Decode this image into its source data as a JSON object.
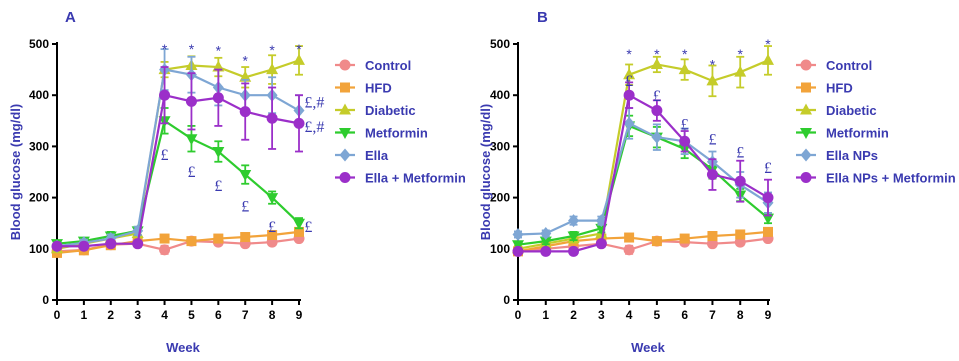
{
  "chart_data": [
    {
      "type": "line",
      "panel_label": "A",
      "xlabel": "Week",
      "ylabel": "Blood glucose (mg/dl)",
      "xlim": [
        0,
        9
      ],
      "ylim": [
        0,
        500
      ],
      "x_ticks": [
        0,
        1,
        2,
        3,
        4,
        5,
        6,
        7,
        8,
        9
      ],
      "y_ticks": [
        0,
        100,
        200,
        300,
        400,
        500
      ],
      "x": [
        0,
        1,
        2,
        3,
        4,
        5,
        6,
        7,
        8,
        9
      ],
      "legend": "right",
      "series": [
        {
          "name": "Control",
          "color": "#f08a8a",
          "marker": "circle",
          "values": [
            95,
            98,
            108,
            110,
            98,
            115,
            113,
            110,
            113,
            120
          ],
          "errors": [
            5,
            5,
            6,
            6,
            8,
            6,
            6,
            5,
            6,
            6
          ]
        },
        {
          "name": "HFD",
          "color": "#f2a33a",
          "marker": "square",
          "values": [
            92,
            97,
            107,
            115,
            120,
            115,
            120,
            123,
            127,
            133
          ],
          "errors": [
            5,
            5,
            5,
            6,
            6,
            6,
            6,
            6,
            6,
            6
          ]
        },
        {
          "name": "Diabetic",
          "color": "#c5cc2a",
          "marker": "triangle-up",
          "values": [
            100,
            110,
            120,
            130,
            450,
            458,
            455,
            435,
            450,
            468
          ],
          "errors": [
            6,
            6,
            8,
            8,
            15,
            18,
            18,
            20,
            28,
            28
          ]
        },
        {
          "name": "Metformin",
          "color": "#2ecc2e",
          "marker": "triangle-down",
          "values": [
            110,
            115,
            125,
            135,
            350,
            315,
            290,
            245,
            200,
            150
          ],
          "errors": [
            6,
            6,
            8,
            8,
            25,
            25,
            20,
            18,
            12,
            10
          ]
        },
        {
          "name": "Ella",
          "color": "#7ea6d4",
          "marker": "diamond",
          "values": [
            105,
            112,
            120,
            135,
            450,
            440,
            415,
            400,
            400,
            370
          ],
          "errors": [
            6,
            6,
            8,
            8,
            40,
            35,
            35,
            30,
            35,
            30
          ]
        },
        {
          "name": "Ella + Metformin",
          "color": "#9b2fc9",
          "marker": "circle",
          "values": [
            105,
            105,
            110,
            110,
            400,
            388,
            395,
            368,
            355,
            345
          ],
          "errors": [
            6,
            6,
            6,
            6,
            55,
            55,
            55,
            55,
            60,
            55
          ]
        }
      ],
      "annotations": [
        {
          "x": 4,
          "y": 500,
          "text": "*"
        },
        {
          "x": 5,
          "y": 500,
          "text": "*"
        },
        {
          "x": 6,
          "y": 497,
          "text": "*"
        },
        {
          "x": 7,
          "y": 478,
          "text": "*"
        },
        {
          "x": 8,
          "y": 498,
          "text": "*"
        },
        {
          "x": 9,
          "y": 500,
          "text": "*"
        },
        {
          "x": 4,
          "y": 285,
          "text": "£",
          "kind": "pound"
        },
        {
          "x": 5,
          "y": 252,
          "text": "£",
          "kind": "pound"
        },
        {
          "x": 6,
          "y": 225,
          "text": "£",
          "kind": "pound"
        },
        {
          "x": 7,
          "y": 185,
          "text": "£",
          "kind": "pound"
        },
        {
          "x": 8,
          "y": 145,
          "text": "£",
          "kind": "pound"
        },
        {
          "x": 9.2,
          "y": 145,
          "text": "£",
          "kind": "pound"
        },
        {
          "x": 9.2,
          "y": 388,
          "text": "£,#",
          "kind": "pound"
        },
        {
          "x": 9.2,
          "y": 340,
          "text": "£,#",
          "kind": "pound"
        }
      ]
    },
    {
      "type": "line",
      "panel_label": "B",
      "xlabel": "Week",
      "ylabel": "Blood glucose (mg/dl)",
      "xlim": [
        0,
        9
      ],
      "ylim": [
        0,
        500
      ],
      "x_ticks": [
        0,
        1,
        2,
        3,
        4,
        5,
        6,
        7,
        8,
        9
      ],
      "y_ticks": [
        0,
        100,
        200,
        300,
        400,
        500
      ],
      "x": [
        0,
        1,
        2,
        3,
        4,
        5,
        6,
        7,
        8,
        9
      ],
      "legend": "right",
      "series": [
        {
          "name": "Control",
          "color": "#f08a8a",
          "marker": "circle",
          "values": [
            95,
            100,
            105,
            110,
            98,
            115,
            113,
            110,
            113,
            120
          ],
          "errors": [
            5,
            5,
            5,
            6,
            8,
            6,
            6,
            5,
            6,
            6
          ]
        },
        {
          "name": "HFD",
          "color": "#f2a33a",
          "marker": "square",
          "values": [
            95,
            105,
            115,
            120,
            122,
            115,
            120,
            125,
            128,
            133
          ],
          "errors": [
            5,
            5,
            5,
            6,
            6,
            6,
            6,
            6,
            6,
            6
          ]
        },
        {
          "name": "Diabetic",
          "color": "#c5cc2a",
          "marker": "triangle-up",
          "values": [
            100,
            110,
            120,
            130,
            440,
            460,
            450,
            428,
            445,
            468
          ],
          "errors": [
            6,
            6,
            8,
            8,
            20,
            15,
            20,
            30,
            30,
            28
          ]
        },
        {
          "name": "Metformin",
          "color": "#2ecc2e",
          "marker": "triangle-down",
          "values": [
            108,
            115,
            125,
            140,
            340,
            318,
            295,
            255,
            205,
            160
          ],
          "errors": [
            6,
            6,
            8,
            8,
            20,
            20,
            18,
            18,
            12,
            10
          ]
        },
        {
          "name": "Ella NPs",
          "color": "#7ea6d4",
          "marker": "diamond",
          "values": [
            128,
            130,
            155,
            155,
            345,
            318,
            310,
            270,
            225,
            190
          ],
          "errors": [
            6,
            6,
            8,
            8,
            30,
            25,
            25,
            20,
            25,
            20
          ]
        },
        {
          "name": "Ella NPs + Metformin",
          "color": "#9b2fc9",
          "marker": "circle",
          "values": [
            95,
            95,
            95,
            110,
            400,
            370,
            310,
            245,
            232,
            200
          ],
          "errors": [
            6,
            6,
            6,
            6,
            25,
            20,
            20,
            30,
            40,
            35
          ]
        }
      ],
      "annotations": [
        {
          "x": 4,
          "y": 490,
          "text": "*"
        },
        {
          "x": 5,
          "y": 490,
          "text": "*"
        },
        {
          "x": 6,
          "y": 490,
          "text": "*"
        },
        {
          "x": 7,
          "y": 470,
          "text": "*"
        },
        {
          "x": 8,
          "y": 490,
          "text": "*"
        },
        {
          "x": 9,
          "y": 510,
          "text": "*"
        },
        {
          "x": 4,
          "y": 430,
          "text": "£",
          "kind": "pound"
        },
        {
          "x": 5,
          "y": 400,
          "text": "£",
          "kind": "pound"
        },
        {
          "x": 6,
          "y": 345,
          "text": "£",
          "kind": "pound"
        },
        {
          "x": 7,
          "y": 315,
          "text": "£",
          "kind": "pound"
        },
        {
          "x": 8,
          "y": 290,
          "text": "£",
          "kind": "pound"
        },
        {
          "x": 9,
          "y": 260,
          "text": "£",
          "kind": "pound"
        }
      ]
    }
  ]
}
